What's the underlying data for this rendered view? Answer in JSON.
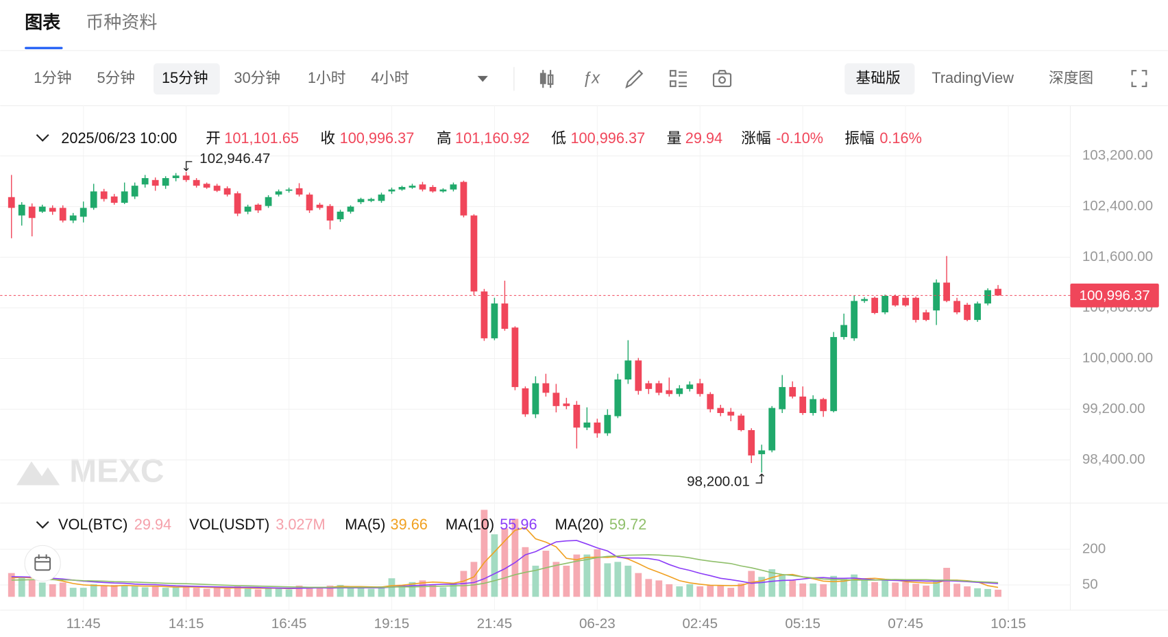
{
  "tabs": [
    "图表",
    "币种资料"
  ],
  "toolbar": {
    "intervals": [
      "1分钟",
      "5分钟",
      "15分钟",
      "30分钟",
      "1小时",
      "4小时"
    ],
    "views": [
      "基础版",
      "TradingView",
      "深度图"
    ]
  },
  "watermark": "MEXC",
  "chart_data": [
    {
      "type": "candlestick",
      "header": {
        "time": "2025/06/23 10:00",
        "items": [
          {
            "label": "开",
            "value": "101,101.65"
          },
          {
            "label": "收",
            "value": "100,996.37"
          },
          {
            "label": "高",
            "value": "101,160.92"
          },
          {
            "label": "低",
            "value": "100,996.37"
          },
          {
            "label": "量",
            "value": "29.94"
          },
          {
            "label": "涨幅",
            "value": "-0.10%"
          },
          {
            "label": "振幅",
            "value": "0.16%"
          }
        ]
      },
      "categories": [
        null,
        null,
        null,
        null,
        null,
        null,
        null,
        "11:45",
        null,
        null,
        null,
        null,
        null,
        null,
        null,
        null,
        null,
        "14:15",
        null,
        null,
        null,
        null,
        null,
        null,
        null,
        null,
        null,
        "16:45",
        null,
        null,
        null,
        null,
        null,
        null,
        null,
        null,
        null,
        "19:15",
        null,
        null,
        null,
        null,
        null,
        null,
        null,
        null,
        null,
        "21:45",
        null,
        null,
        null,
        null,
        null,
        null,
        null,
        null,
        null,
        "06-23",
        null,
        null,
        null,
        null,
        null,
        null,
        null,
        null,
        null,
        "02:45",
        null,
        null,
        null,
        null,
        null,
        null,
        null,
        null,
        null,
        "05:15",
        null,
        null,
        null,
        null,
        null,
        null,
        null,
        null,
        null,
        "07:45",
        null,
        null,
        null,
        null,
        null,
        null,
        null,
        null,
        null,
        "10:15"
      ],
      "open": [
        102550,
        102260,
        102400,
        102320,
        102380,
        102380,
        102180,
        102240,
        102380,
        102640,
        102560,
        102460,
        102560,
        102750,
        102820,
        102730,
        102850,
        102890,
        102820,
        102760,
        102730,
        102690,
        102610,
        102320,
        102430,
        102410,
        102590,
        102650,
        102690,
        102590,
        102430,
        102410,
        102200,
        102320,
        102470,
        102490,
        102490,
        102640,
        102670,
        102700,
        102750,
        102710,
        102640,
        102670,
        102790,
        102260,
        101060,
        100320,
        100870,
        100490,
        99530,
        99120,
        99610,
        99460,
        99290,
        99270,
        98910,
        98990,
        98820,
        99090,
        99670,
        99970,
        99610,
        99610,
        99500,
        99440,
        99520,
        99610,
        99440,
        99220,
        99160,
        99100,
        98870,
        98490,
        98550,
        99200,
        99550,
        99400,
        99140,
        99360,
        99170,
        100340,
        100320,
        100910,
        100960,
        100730,
        100990,
        100960,
        100960,
        100730,
        100760,
        101200,
        100910,
        100850,
        100610,
        100870,
        101101.65,
        null
      ],
      "close": [
        102380,
        102430,
        102220,
        102400,
        102320,
        102180,
        102260,
        102380,
        102640,
        102520,
        102460,
        102640,
        102730,
        102850,
        102730,
        102850,
        102890,
        102820,
        102730,
        102700,
        102650,
        102590,
        102290,
        102400,
        102340,
        102550,
        102640,
        102670,
        102590,
        102340,
        102380,
        102180,
        102320,
        102400,
        102520,
        102520,
        102590,
        102670,
        102710,
        102730,
        102670,
        102640,
        102670,
        102750,
        102260,
        101060,
        100320,
        100870,
        100470,
        99550,
        99120,
        99610,
        99460,
        99250,
        99250,
        98910,
        98990,
        98820,
        99110,
        99670,
        99970,
        99490,
        99520,
        99460,
        99440,
        99530,
        99590,
        99440,
        99200,
        99140,
        99100,
        98870,
        98470,
        98550,
        99220,
        99550,
        99400,
        99140,
        99360,
        99170,
        100340,
        100530,
        100910,
        100940,
        100720,
        100990,
        100840,
        100840,
        100610,
        100610,
        101200,
        100910,
        100730,
        100610,
        100870,
        101080,
        100996.37,
        null
      ],
      "high": [
        102900,
        102470,
        102450,
        102430,
        102420,
        102420,
        102300,
        102480,
        102760,
        102680,
        102600,
        102780,
        102780,
        102900,
        102860,
        102880,
        102930,
        102946.47,
        102850,
        102780,
        102760,
        102720,
        102640,
        102430,
        102450,
        102580,
        102670,
        102700,
        102770,
        102620,
        102460,
        102440,
        102350,
        102420,
        102540,
        102540,
        102620,
        102700,
        102730,
        102760,
        102790,
        102740,
        102690,
        102780,
        102810,
        102280,
        101100,
        100960,
        101230,
        100510,
        99560,
        99720,
        99760,
        99600,
        99380,
        99330,
        99230,
        99050,
        99200,
        99760,
        100290,
        100010,
        99650,
        99650,
        99700,
        99580,
        99640,
        99680,
        99470,
        99270,
        99220,
        99130,
        98900,
        98640,
        99250,
        99740,
        99640,
        99560,
        99420,
        99380,
        100420,
        100710,
        101000,
        100970,
        100980,
        101010,
        101010,
        101000,
        100980,
        100770,
        101250,
        101620,
        100960,
        100880,
        100900,
        101110,
        101160.92,
        null
      ],
      "low": [
        101900,
        102100,
        101930,
        102300,
        102270,
        102150,
        102140,
        102150,
        102350,
        102480,
        102430,
        102440,
        102520,
        102700,
        102650,
        102680,
        102800,
        102790,
        102700,
        102680,
        102630,
        102560,
        102250,
        102280,
        102300,
        102380,
        102560,
        102620,
        102560,
        102300,
        102350,
        102040,
        102160,
        102290,
        102440,
        102470,
        102460,
        102600,
        102650,
        102680,
        102640,
        102620,
        102620,
        102640,
        102230,
        101000,
        100280,
        100290,
        100440,
        99500,
        99080,
        99060,
        99400,
        99150,
        99200,
        98580,
        98870,
        98750,
        98780,
        99060,
        99600,
        99430,
        99440,
        99420,
        99400,
        99400,
        99480,
        99400,
        99150,
        99090,
        99010,
        98850,
        98350,
        98200.01,
        98520,
        99140,
        99370,
        99110,
        99100,
        99080,
        99150,
        100300,
        100280,
        100880,
        100700,
        100700,
        100820,
        100820,
        100570,
        100590,
        100530,
        100890,
        100700,
        100590,
        100580,
        100840,
        100996.37,
        null
      ],
      "up_color": "#20a96b",
      "down_color": "#f0465a",
      "ylim": [
        97730,
        103900
      ],
      "yticks": [
        {
          "value": 98400,
          "label": "98,400.00"
        },
        {
          "value": 99200,
          "label": "99,200.00"
        },
        {
          "value": 100000,
          "label": "100,000.00"
        },
        {
          "value": 100800,
          "label": "100,800.00"
        },
        {
          "value": 101600,
          "label": "101,600.00"
        },
        {
          "value": 102400,
          "label": "102,400.00"
        },
        {
          "value": 103200,
          "label": "103,200.00"
        }
      ],
      "grid": true,
      "last_price": {
        "value": 100996.37,
        "label": "100,996.37"
      },
      "annotations": [
        {
          "value": 102946.47,
          "label": "102,946.47"
        },
        {
          "value": 98200.01,
          "label": "98,200.01"
        }
      ]
    },
    {
      "type": "bar",
      "up_color": "#a3dbc2",
      "down_color": "#f6aab2",
      "series": [
        {
          "name": "VOL(BTC)",
          "type": "bar",
          "color": "#f5a0aa",
          "values": [
            100,
            85,
            70,
            60,
            53,
            60,
            38,
            38,
            53,
            47,
            50,
            47,
            44,
            40,
            44,
            38,
            40,
            47,
            38,
            34,
            38,
            34,
            44,
            34,
            31,
            38,
            34,
            31,
            47,
            40,
            38,
            47,
            50,
            40,
            38,
            34,
            44,
            78,
            50,
            62,
            69,
            53,
            40,
            60,
            109,
            147,
            366,
            263,
            288,
            328,
            209,
            131,
            194,
            147,
            131,
            178,
            178,
            200,
            141,
            147,
            131,
            100,
            75,
            69,
            53,
            44,
            53,
            44,
            50,
            50,
            38,
            56,
            109,
            84,
            116,
            94,
            69,
            56,
            56,
            53,
            88,
            75,
            94,
            69,
            62,
            69,
            60,
            62,
            55,
            47,
            66,
            122,
            55,
            44,
            36,
            33,
            29.94,
            null
          ]
        },
        {
          "name": "MA(5)",
          "type": "line",
          "color": "#f0a020",
          "values": [
            80,
            82,
            80,
            75,
            74,
            66,
            56,
            50,
            48,
            47,
            45,
            48,
            46,
            45,
            45,
            43,
            41,
            42,
            41,
            40,
            39,
            37,
            38,
            37,
            36,
            36,
            36,
            34,
            36,
            38,
            38,
            40,
            44,
            43,
            43,
            42,
            41,
            47,
            49,
            54,
            59,
            62,
            60,
            57,
            66,
            84,
            144,
            189,
            235,
            280,
            291,
            244,
            230,
            210,
            162,
            156,
            166,
            167,
            166,
            169,
            159,
            140,
            119,
            103,
            86,
            68,
            59,
            53,
            49,
            48,
            47,
            48,
            61,
            67,
            81,
            92,
            94,
            84,
            76,
            66,
            64,
            66,
            73,
            76,
            78,
            74,
            71,
            64,
            61,
            58,
            58,
            70,
            70,
            68,
            63,
            47,
            39.66,
            null
          ]
        },
        {
          "name": "MA(10)",
          "type": "line",
          "color": "#8b3cf7",
          "values": [
            85,
            84,
            83,
            80,
            78,
            75,
            70,
            66,
            63,
            60,
            58,
            57,
            54,
            52,
            51,
            49,
            46,
            45,
            44,
            43,
            42,
            41,
            40,
            40,
            39,
            38,
            37,
            36,
            36,
            37,
            38,
            37,
            38,
            38,
            38,
            38,
            38,
            41,
            44,
            47,
            49,
            51,
            53,
            53,
            56,
            60,
            76,
            97,
            118,
            144,
            177,
            190,
            211,
            231,
            235,
            237,
            222,
            206,
            193,
            167,
            163,
            163,
            161,
            154,
            136,
            121,
            111,
            99,
            89,
            78,
            72,
            65,
            57,
            60,
            65,
            69,
            70,
            75,
            80,
            81,
            78,
            78,
            79,
            75,
            71,
            70,
            69,
            68,
            68,
            66,
            66,
            68,
            66,
            64,
            61,
            59,
            55.96,
            null
          ]
        },
        {
          "name": "MA(20)",
          "type": "line",
          "color": "#8fbf6a",
          "values": [
            70,
            71,
            72,
            72,
            72,
            71,
            70,
            68,
            67,
            66,
            64,
            63,
            62,
            60,
            59,
            57,
            56,
            55,
            54,
            52,
            50,
            49,
            47,
            46,
            45,
            44,
            43,
            42,
            41,
            40,
            40,
            40,
            40,
            40,
            40,
            40,
            40,
            41,
            42,
            42,
            43,
            44,
            45,
            46,
            47,
            50,
            57,
            68,
            80,
            93,
            103,
            111,
            122,
            132,
            141,
            150,
            157,
            165,
            170,
            172,
            175,
            176,
            177,
            176,
            173,
            170,
            164,
            156,
            150,
            145,
            140,
            130,
            122,
            112,
            101,
            94,
            90,
            84,
            80,
            75,
            73,
            72,
            70,
            70,
            70,
            72,
            73,
            72,
            72,
            72,
            70,
            70,
            69,
            66,
            64,
            62,
            59.72,
            null
          ]
        }
      ],
      "vol_usdt": {
        "name": "VOL(USDT)",
        "value": "3.027M"
      },
      "ylim": [
        0,
        382
      ],
      "yticks": [
        50,
        200
      ],
      "grid": true
    }
  ]
}
